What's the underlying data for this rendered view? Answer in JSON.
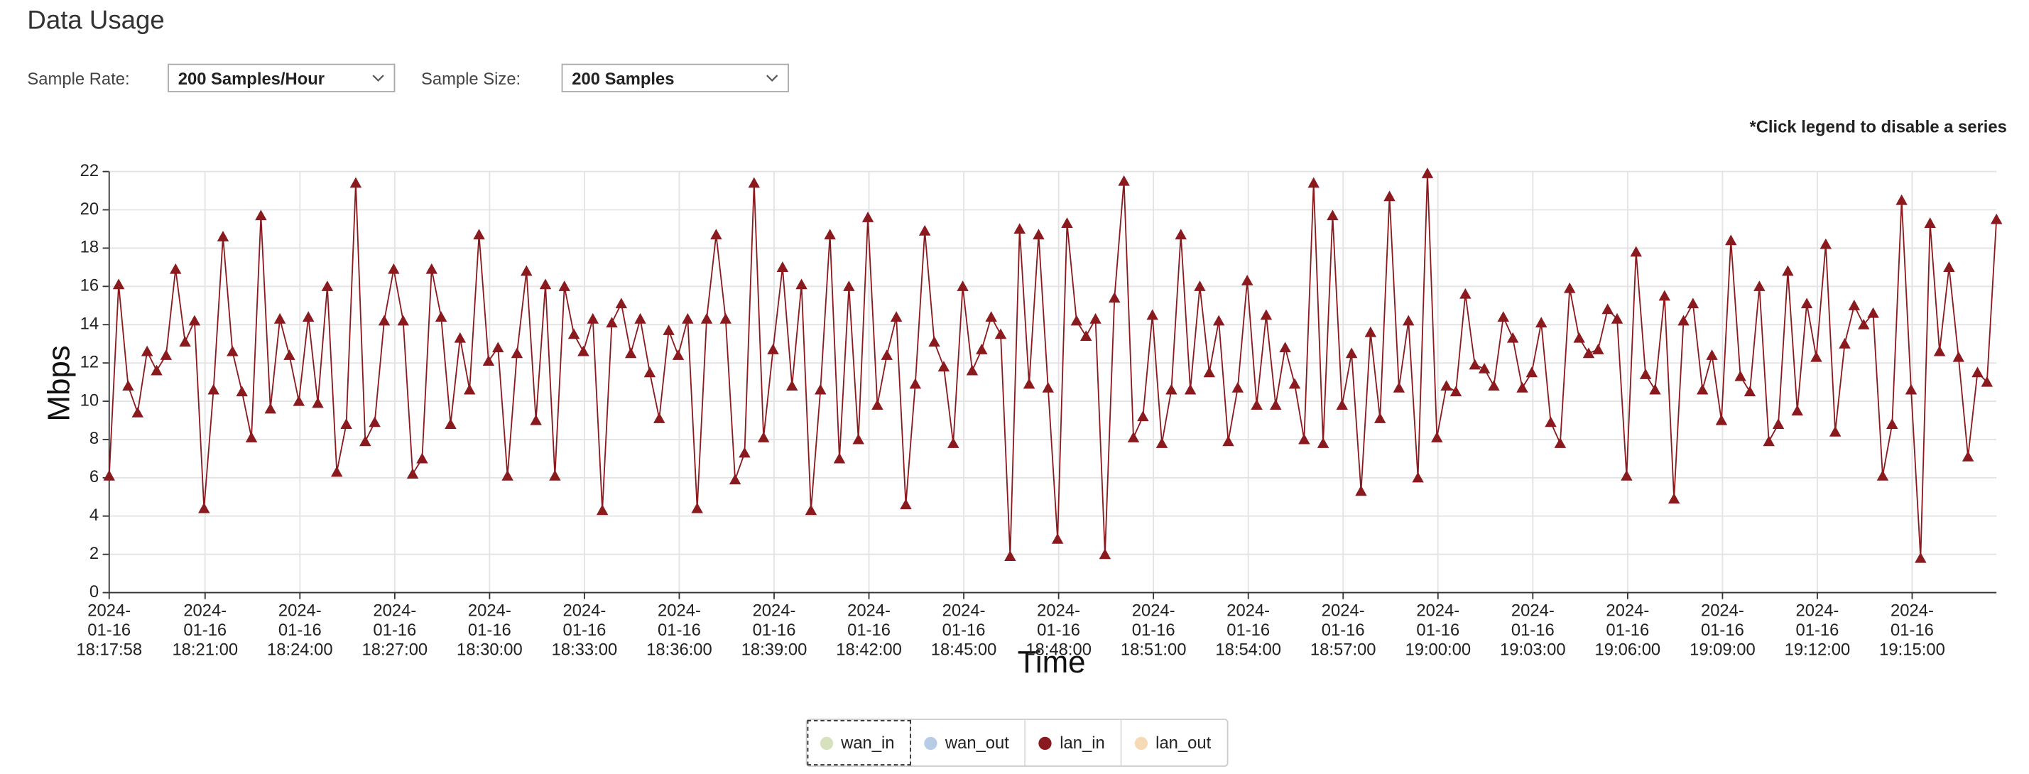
{
  "header": {
    "title": "Data Usage"
  },
  "controls": [
    {
      "label": "Sample Rate:",
      "value": "200 Samples/Hour"
    },
    {
      "label": "Sample Size:",
      "value": "200 Samples"
    }
  ],
  "note": "*Click legend to disable a series",
  "chart_data": {
    "type": "line",
    "ylabel": "Mbps",
    "xlabel": "Time",
    "grid": true,
    "marker": "triangle",
    "legend": "bottom",
    "ylim": [
      0,
      22
    ],
    "yticks": [
      0,
      2,
      4,
      6,
      8,
      10,
      12,
      14,
      16,
      18,
      20,
      22
    ],
    "xlim": [
      "2024-01-16 18:17:58",
      "2024-01-16 19:17:40"
    ],
    "xticks": [
      "2024-01-16 18:17:58",
      "2024-01-16 18:21:00",
      "2024-01-16 18:24:00",
      "2024-01-16 18:27:00",
      "2024-01-16 18:30:00",
      "2024-01-16 18:33:00",
      "2024-01-16 18:36:00",
      "2024-01-16 18:39:00",
      "2024-01-16 18:42:00",
      "2024-01-16 18:45:00",
      "2024-01-16 18:48:00",
      "2024-01-16 18:51:00",
      "2024-01-16 18:54:00",
      "2024-01-16 18:57:00",
      "2024-01-16 19:00:00",
      "2024-01-16 19:03:00",
      "2024-01-16 19:06:00",
      "2024-01-16 19:09:00",
      "2024-01-16 19:12:00",
      "2024-01-16 19:15:00"
    ],
    "x": [
      "2024-01-16 18:17:58",
      "2024-01-16 18:18:16",
      "2024-01-16 18:18:34",
      "2024-01-16 18:18:52",
      "2024-01-16 18:19:10",
      "2024-01-16 18:19:28",
      "2024-01-16 18:19:46",
      "2024-01-16 18:20:04",
      "2024-01-16 18:20:22",
      "2024-01-16 18:20:40",
      "2024-01-16 18:20:58",
      "2024-01-16 18:21:16",
      "2024-01-16 18:21:34",
      "2024-01-16 18:21:52",
      "2024-01-16 18:22:10",
      "2024-01-16 18:22:28",
      "2024-01-16 18:22:46",
      "2024-01-16 18:23:04",
      "2024-01-16 18:23:22",
      "2024-01-16 18:23:40",
      "2024-01-16 18:23:58",
      "2024-01-16 18:24:16",
      "2024-01-16 18:24:34",
      "2024-01-16 18:24:52",
      "2024-01-16 18:25:10",
      "2024-01-16 18:25:28",
      "2024-01-16 18:25:46",
      "2024-01-16 18:26:04",
      "2024-01-16 18:26:22",
      "2024-01-16 18:26:40",
      "2024-01-16 18:26:58",
      "2024-01-16 18:27:16",
      "2024-01-16 18:27:34",
      "2024-01-16 18:27:52",
      "2024-01-16 18:28:10",
      "2024-01-16 18:28:28",
      "2024-01-16 18:28:46",
      "2024-01-16 18:29:04",
      "2024-01-16 18:29:22",
      "2024-01-16 18:29:40",
      "2024-01-16 18:29:58",
      "2024-01-16 18:30:16",
      "2024-01-16 18:30:34",
      "2024-01-16 18:30:52",
      "2024-01-16 18:31:10",
      "2024-01-16 18:31:28",
      "2024-01-16 18:31:46",
      "2024-01-16 18:32:04",
      "2024-01-16 18:32:22",
      "2024-01-16 18:32:40",
      "2024-01-16 18:32:58",
      "2024-01-16 18:33:16",
      "2024-01-16 18:33:34",
      "2024-01-16 18:33:52",
      "2024-01-16 18:34:10",
      "2024-01-16 18:34:28",
      "2024-01-16 18:34:46",
      "2024-01-16 18:35:04",
      "2024-01-16 18:35:22",
      "2024-01-16 18:35:40",
      "2024-01-16 18:35:58",
      "2024-01-16 18:36:16",
      "2024-01-16 18:36:34",
      "2024-01-16 18:36:52",
      "2024-01-16 18:37:10",
      "2024-01-16 18:37:28",
      "2024-01-16 18:37:46",
      "2024-01-16 18:38:04",
      "2024-01-16 18:38:22",
      "2024-01-16 18:38:40",
      "2024-01-16 18:38:58",
      "2024-01-16 18:39:16",
      "2024-01-16 18:39:34",
      "2024-01-16 18:39:52",
      "2024-01-16 18:40:10",
      "2024-01-16 18:40:28",
      "2024-01-16 18:40:46",
      "2024-01-16 18:41:04",
      "2024-01-16 18:41:22",
      "2024-01-16 18:41:40",
      "2024-01-16 18:41:58",
      "2024-01-16 18:42:16",
      "2024-01-16 18:42:34",
      "2024-01-16 18:42:52",
      "2024-01-16 18:43:10",
      "2024-01-16 18:43:28",
      "2024-01-16 18:43:46",
      "2024-01-16 18:44:04",
      "2024-01-16 18:44:22",
      "2024-01-16 18:44:40",
      "2024-01-16 18:44:58",
      "2024-01-16 18:45:16",
      "2024-01-16 18:45:34",
      "2024-01-16 18:45:52",
      "2024-01-16 18:46:10",
      "2024-01-16 18:46:28",
      "2024-01-16 18:46:46",
      "2024-01-16 18:47:04",
      "2024-01-16 18:47:22",
      "2024-01-16 18:47:40",
      "2024-01-16 18:47:58",
      "2024-01-16 18:48:16",
      "2024-01-16 18:48:34",
      "2024-01-16 18:48:52",
      "2024-01-16 18:49:10",
      "2024-01-16 18:49:28",
      "2024-01-16 18:49:46",
      "2024-01-16 18:50:04",
      "2024-01-16 18:50:22",
      "2024-01-16 18:50:40",
      "2024-01-16 18:50:58",
      "2024-01-16 18:51:16",
      "2024-01-16 18:51:34",
      "2024-01-16 18:51:52",
      "2024-01-16 18:52:10",
      "2024-01-16 18:52:28",
      "2024-01-16 18:52:46",
      "2024-01-16 18:53:04",
      "2024-01-16 18:53:22",
      "2024-01-16 18:53:40",
      "2024-01-16 18:53:58",
      "2024-01-16 18:54:16",
      "2024-01-16 18:54:34",
      "2024-01-16 18:54:52",
      "2024-01-16 18:55:10",
      "2024-01-16 18:55:28",
      "2024-01-16 18:55:46",
      "2024-01-16 18:56:04",
      "2024-01-16 18:56:22",
      "2024-01-16 18:56:40",
      "2024-01-16 18:56:58",
      "2024-01-16 18:57:16",
      "2024-01-16 18:57:34",
      "2024-01-16 18:57:52",
      "2024-01-16 18:58:10",
      "2024-01-16 18:58:28",
      "2024-01-16 18:58:46",
      "2024-01-16 18:59:04",
      "2024-01-16 18:59:22",
      "2024-01-16 18:59:40",
      "2024-01-16 18:59:58",
      "2024-01-16 19:00:16",
      "2024-01-16 19:00:34",
      "2024-01-16 19:00:52",
      "2024-01-16 19:01:10",
      "2024-01-16 19:01:28",
      "2024-01-16 19:01:46",
      "2024-01-16 19:02:04",
      "2024-01-16 19:02:22",
      "2024-01-16 19:02:40",
      "2024-01-16 19:02:58",
      "2024-01-16 19:03:16",
      "2024-01-16 19:03:34",
      "2024-01-16 19:03:52",
      "2024-01-16 19:04:10",
      "2024-01-16 19:04:28",
      "2024-01-16 19:04:46",
      "2024-01-16 19:05:04",
      "2024-01-16 19:05:22",
      "2024-01-16 19:05:40",
      "2024-01-16 19:05:58",
      "2024-01-16 19:06:16",
      "2024-01-16 19:06:34",
      "2024-01-16 19:06:52",
      "2024-01-16 19:07:10",
      "2024-01-16 19:07:28",
      "2024-01-16 19:07:46",
      "2024-01-16 19:08:04",
      "2024-01-16 19:08:22",
      "2024-01-16 19:08:40",
      "2024-01-16 19:08:58",
      "2024-01-16 19:09:16",
      "2024-01-16 19:09:34",
      "2024-01-16 19:09:52",
      "2024-01-16 19:10:10",
      "2024-01-16 19:10:28",
      "2024-01-16 19:10:46",
      "2024-01-16 19:11:04",
      "2024-01-16 19:11:22",
      "2024-01-16 19:11:40",
      "2024-01-16 19:11:58",
      "2024-01-16 19:12:16",
      "2024-01-16 19:12:34",
      "2024-01-16 19:12:52",
      "2024-01-16 19:13:10",
      "2024-01-16 19:13:28",
      "2024-01-16 19:13:46",
      "2024-01-16 19:14:04",
      "2024-01-16 19:14:22",
      "2024-01-16 19:14:40",
      "2024-01-16 19:14:58",
      "2024-01-16 19:15:16",
      "2024-01-16 19:15:34",
      "2024-01-16 19:15:52",
      "2024-01-16 19:16:10",
      "2024-01-16 19:16:28",
      "2024-01-16 19:16:46",
      "2024-01-16 19:17:04",
      "2024-01-16 19:17:22",
      "2024-01-16 19:17:40"
    ],
    "series": [
      {
        "name": "wan_in",
        "color": "#d6e2bd"
      },
      {
        "name": "wan_out",
        "color": "#b9cce6"
      },
      {
        "name": "lan_in",
        "color": "#8b1a1f",
        "values": [
          6.1,
          16.1,
          10.8,
          9.4,
          12.6,
          11.6,
          12.4,
          16.9,
          13.1,
          14.2,
          4.4,
          10.6,
          18.6,
          12.6,
          10.5,
          8.1,
          19.7,
          9.6,
          14.3,
          12.4,
          10.0,
          14.4,
          9.9,
          16.0,
          6.3,
          8.8,
          21.4,
          7.9,
          8.9,
          14.2,
          16.9,
          14.2,
          6.2,
          7.0,
          16.9,
          14.4,
          8.8,
          13.3,
          10.6,
          18.7,
          12.1,
          12.8,
          6.1,
          12.5,
          16.8,
          9.0,
          16.1,
          6.1,
          16.0,
          13.5,
          12.6,
          14.3,
          4.3,
          14.1,
          15.1,
          12.5,
          14.3,
          11.5,
          9.1,
          13.7,
          12.4,
          14.3,
          4.4,
          14.3,
          18.7,
          14.3,
          5.9,
          7.3,
          21.4,
          8.1,
          12.7,
          17.0,
          10.8,
          16.1,
          4.3,
          10.6,
          18.7,
          7.0,
          16.0,
          8.0,
          19.6,
          9.8,
          12.4,
          14.4,
          4.6,
          10.9,
          18.9,
          13.1,
          11.8,
          7.8,
          16.0,
          11.6,
          12.7,
          14.4,
          13.5,
          1.9,
          19.0,
          10.9,
          18.7,
          10.7,
          2.8,
          19.3,
          14.2,
          13.4,
          14.3,
          2.0,
          15.4,
          21.5,
          8.1,
          9.2,
          14.5,
          7.8,
          10.6,
          18.7,
          10.6,
          16.0,
          11.5,
          14.2,
          7.9,
          10.7,
          16.3,
          9.8,
          14.5,
          9.8,
          12.8,
          10.9,
          8.0,
          21.4,
          7.8,
          19.7,
          9.8,
          12.5,
          5.3,
          13.6,
          9.1,
          20.7,
          10.7,
          14.2,
          6.0,
          21.9,
          8.1,
          10.8,
          10.5,
          15.6,
          11.9,
          11.7,
          10.8,
          14.4,
          13.3,
          10.7,
          11.5,
          14.1,
          8.9,
          7.8,
          15.9,
          13.3,
          12.5,
          12.7,
          14.8,
          14.3,
          6.1,
          17.8,
          11.4,
          10.6,
          15.5,
          4.9,
          14.2,
          15.1,
          10.6,
          12.4,
          9.0,
          18.4,
          11.3,
          10.5,
          16.0,
          7.9,
          8.8,
          16.8,
          9.5,
          15.1,
          12.3,
          18.2,
          8.4,
          13.0,
          15.0,
          14.0,
          14.6,
          6.1,
          8.8,
          20.5,
          10.6,
          1.8,
          19.3,
          12.6,
          17.0,
          12.3,
          7.1,
          11.5,
          11.0,
          19.5
        ]
      },
      {
        "name": "lan_out",
        "color": "#f6d9b5"
      }
    ]
  }
}
